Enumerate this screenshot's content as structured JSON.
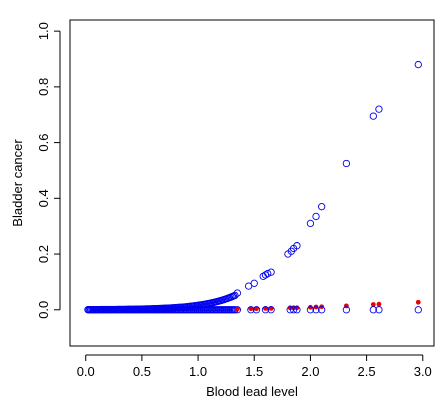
{
  "chart_data": {
    "type": "scatter",
    "title": "",
    "xlabel": "Blood lead level",
    "ylabel": "Bladder cancer",
    "xlim": [
      -0.14,
      3.1
    ],
    "ylim": [
      -0.13,
      1.04
    ],
    "xticks": [
      0.0,
      0.5,
      1.0,
      1.5,
      2.0,
      2.5,
      3.0
    ],
    "xtick_labels": [
      "0.0",
      "0.5",
      "1.0",
      "1.5",
      "2.0",
      "2.5",
      "3.0"
    ],
    "yticks": [
      0.0,
      0.2,
      0.4,
      0.6,
      0.8,
      1.0
    ],
    "ytick_labels": [
      "0.0",
      "0.2",
      "0.4",
      "0.6",
      "0.8",
      "1.0"
    ],
    "grid": false,
    "legend": "none",
    "series": [
      {
        "marker": "open-circle",
        "color": "#0000ee",
        "points": [
          [
            1.35,
            0.06
          ],
          [
            1.45,
            0.085
          ],
          [
            1.5,
            0.095
          ],
          [
            1.58,
            0.12
          ],
          [
            1.6,
            0.125
          ],
          [
            1.62,
            0.13
          ],
          [
            1.65,
            0.135
          ],
          [
            1.8,
            0.2
          ],
          [
            1.83,
            0.21
          ],
          [
            1.85,
            0.22
          ],
          [
            1.88,
            0.23
          ],
          [
            2.0,
            0.31
          ],
          [
            2.05,
            0.335
          ],
          [
            2.1,
            0.37
          ],
          [
            2.32,
            0.525
          ],
          [
            2.56,
            0.695
          ],
          [
            2.61,
            0.72
          ],
          [
            2.96,
            0.88
          ],
          [
            1.35,
            0.0
          ],
          [
            1.47,
            0.0
          ],
          [
            1.52,
            0.0
          ],
          [
            1.6,
            0.0
          ],
          [
            1.65,
            0.0
          ],
          [
            1.82,
            0.0
          ],
          [
            1.85,
            0.0
          ],
          [
            1.88,
            0.0
          ],
          [
            2.0,
            0.0
          ],
          [
            2.05,
            0.0
          ],
          [
            2.1,
            0.0
          ],
          [
            2.32,
            0.0
          ],
          [
            2.56,
            0.0
          ],
          [
            2.61,
            0.0
          ],
          [
            2.96,
            0.0
          ]
        ]
      },
      {
        "marker": "filled-dot",
        "color": "#ee0000",
        "points": [
          [
            1.35,
            0.003
          ],
          [
            1.47,
            0.004
          ],
          [
            1.52,
            0.004
          ],
          [
            1.6,
            0.005
          ],
          [
            1.65,
            0.005
          ],
          [
            1.82,
            0.007
          ],
          [
            1.85,
            0.007
          ],
          [
            1.88,
            0.007
          ],
          [
            2.0,
            0.009
          ],
          [
            2.05,
            0.01
          ],
          [
            2.1,
            0.011
          ],
          [
            2.32,
            0.014
          ],
          [
            2.56,
            0.019
          ],
          [
            2.61,
            0.02
          ],
          [
            2.96,
            0.027
          ]
        ]
      }
    ],
    "dense_fit": {
      "x_from": 0.02,
      "x_to": 1.33,
      "step": 0.012,
      "curve": "logistic",
      "b0": -7.8,
      "b1": 3.68
    }
  }
}
